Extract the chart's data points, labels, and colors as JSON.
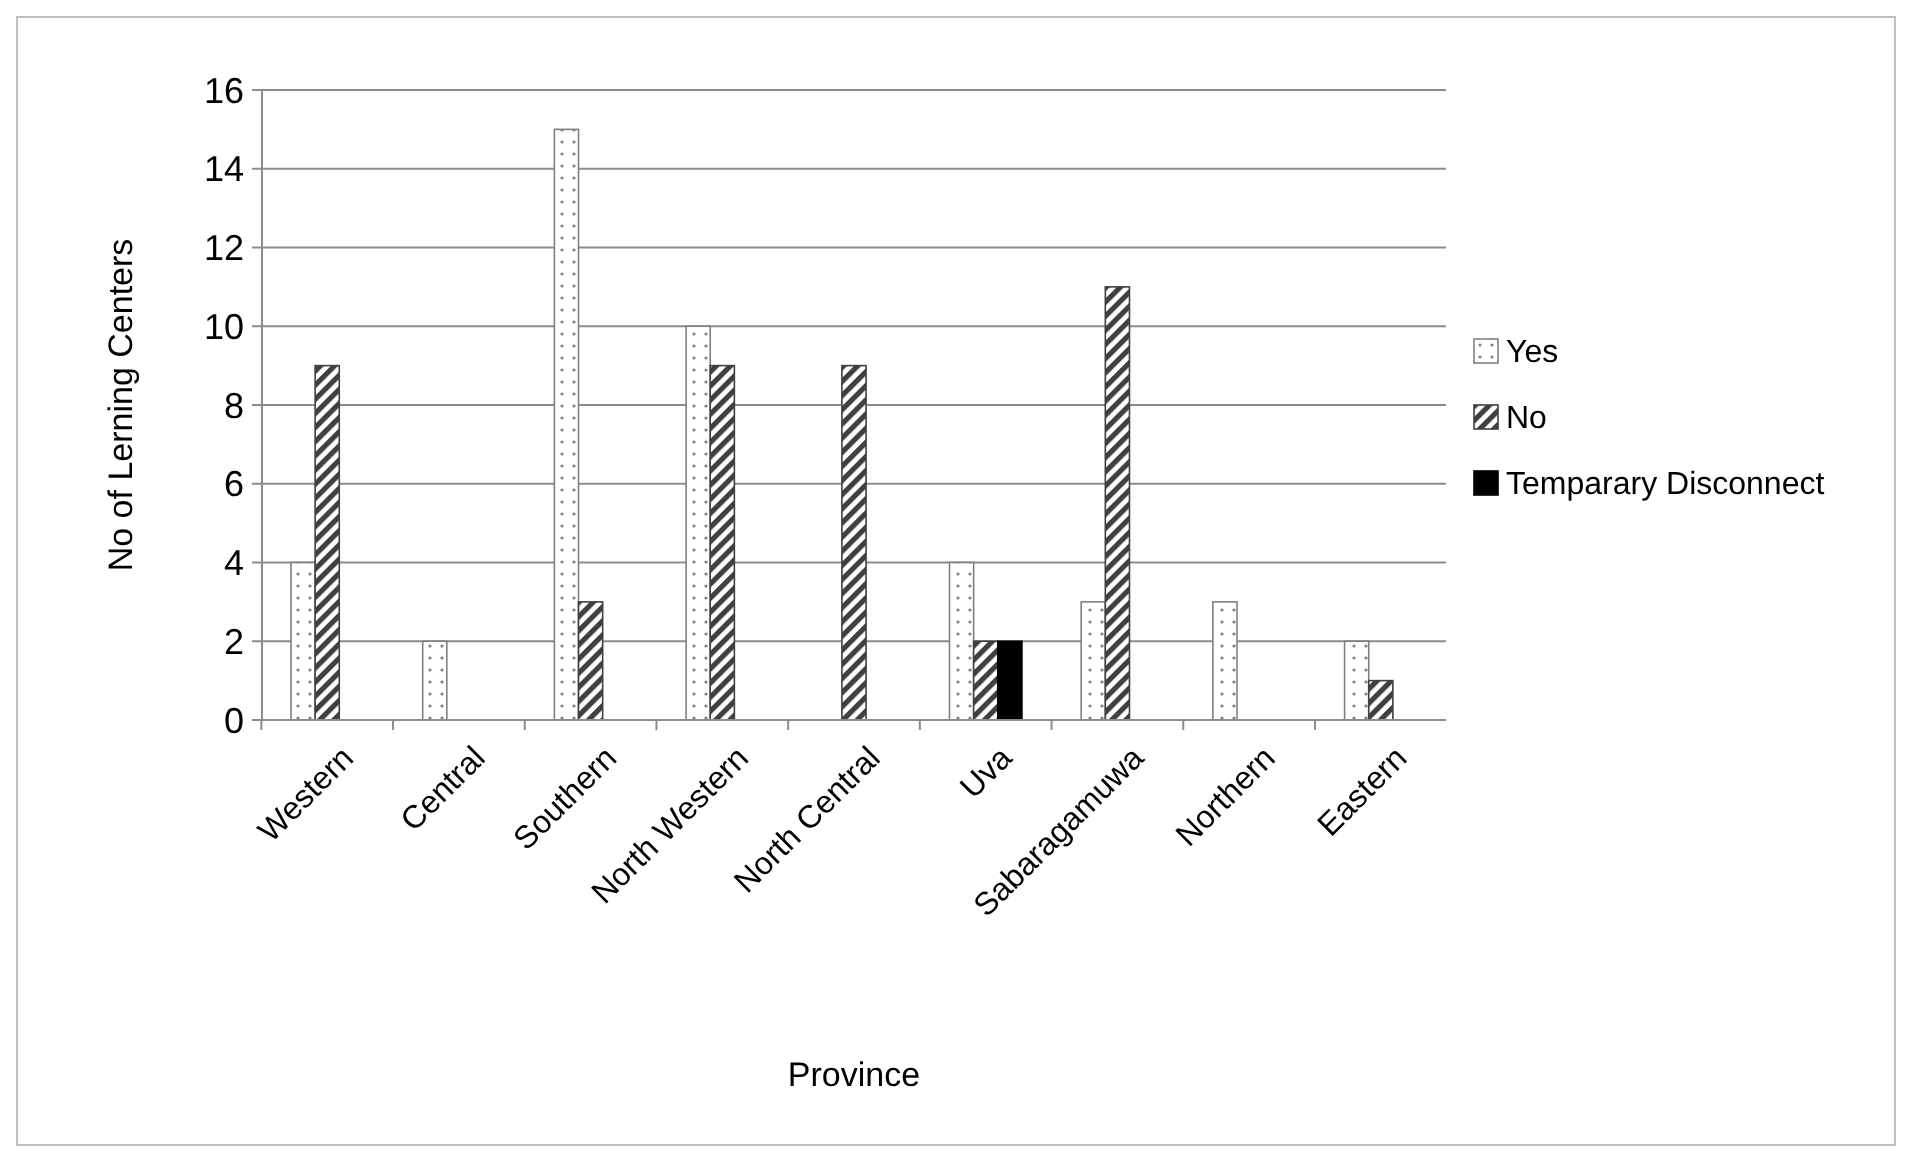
{
  "chart_data": {
    "type": "bar",
    "xlabel": "Province",
    "ylabel": "No of Lerning Centers",
    "categories": [
      "Western",
      "Central",
      "Southern",
      "North Western",
      "North Central",
      "Uva",
      "Sabaragamuwa",
      "Northern",
      "Eastern"
    ],
    "series": [
      {
        "name": "Yes",
        "color": "#808080",
        "values": [
          4,
          2,
          15,
          10,
          0,
          4,
          3,
          3,
          2
        ]
      },
      {
        "name": "No",
        "color": "#404040",
        "values": [
          9,
          0,
          3,
          9,
          9,
          2,
          11,
          0,
          1
        ]
      },
      {
        "name": "Temparary Disconnect",
        "color": "#000000",
        "values": [
          0,
          0,
          0,
          0,
          0,
          2,
          0,
          0,
          0
        ]
      }
    ],
    "ylim": [
      0,
      16
    ],
    "yticks": [
      0,
      2,
      4,
      6,
      8,
      10,
      12,
      14,
      16
    ],
    "grid": "y",
    "legend": "right"
  }
}
